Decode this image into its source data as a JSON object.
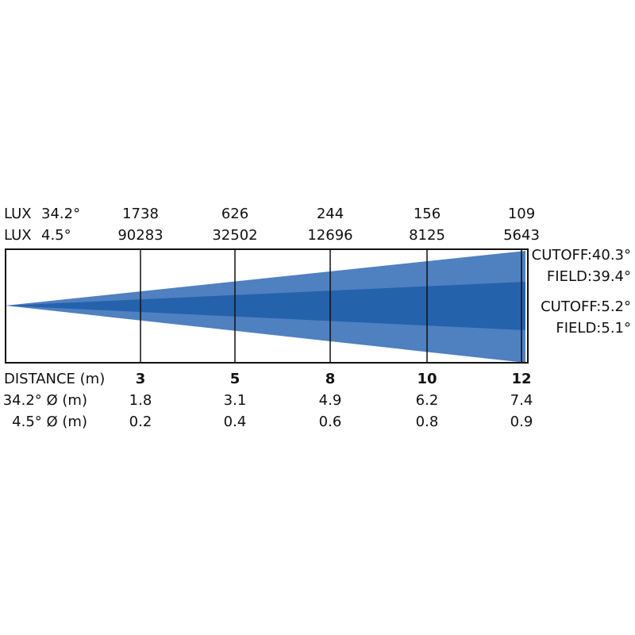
{
  "lux_rows": [
    {
      "label": "LUX",
      "angle": "34.2°",
      "values": [
        1738,
        626,
        244,
        156,
        109
      ]
    },
    {
      "label": "LUX",
      "angle": "4.5°",
      "values": [
        90283,
        32502,
        12696,
        8125,
        5643
      ]
    }
  ],
  "distance": {
    "label": "DISTANCE (m)",
    "values": [
      3,
      5,
      8,
      10,
      12
    ]
  },
  "diameter_rows": [
    {
      "label": "34.2° Ø (m)",
      "values": [
        1.8,
        3.1,
        4.9,
        6.2,
        7.4
      ]
    },
    {
      "label": "4.5° Ø (m)",
      "values": [
        0.2,
        0.4,
        0.6,
        0.8,
        0.9
      ]
    }
  ],
  "beam_labels": [
    "CUTOFF:40.3°",
    "FIELD:39.4°",
    "CUTOFF:5.2°",
    "FIELD:5.1°"
  ]
}
